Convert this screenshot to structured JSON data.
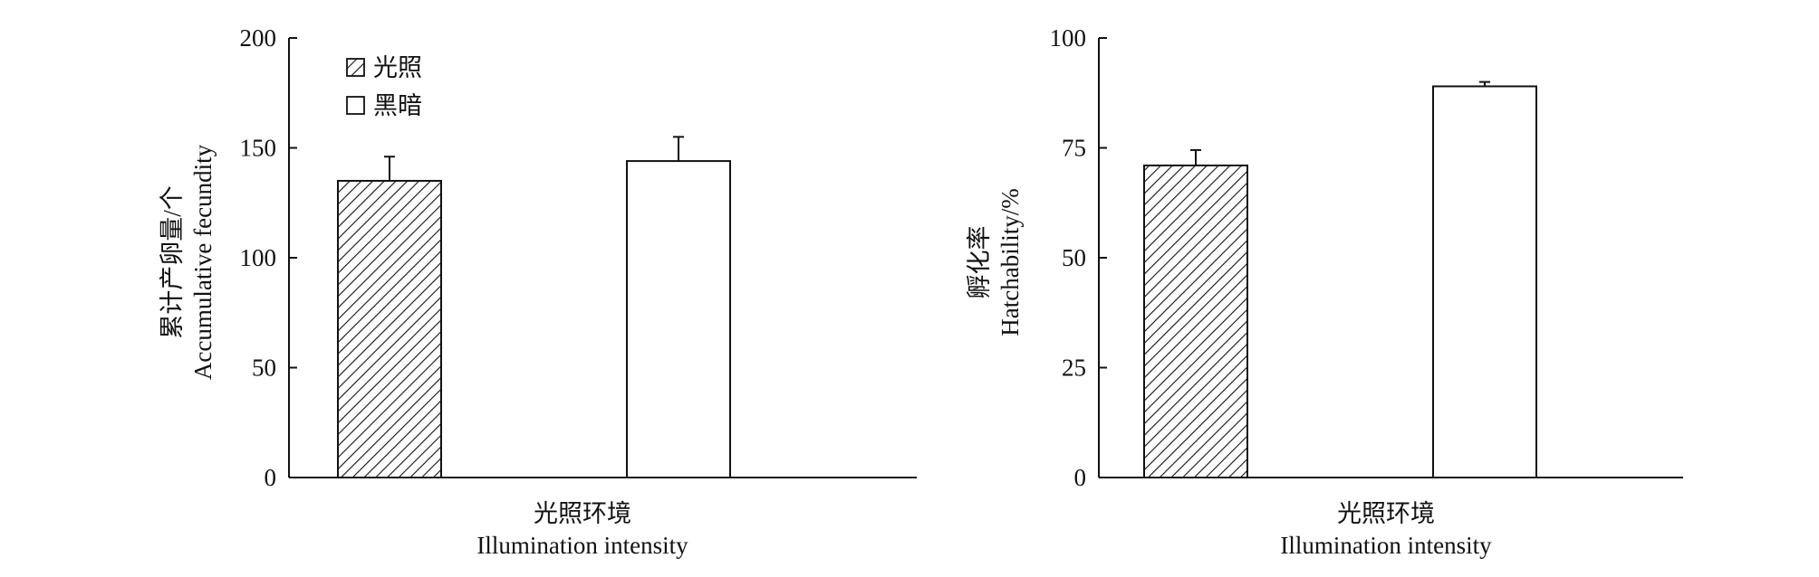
{
  "chart_data": [
    {
      "type": "bar",
      "categories": [
        "光照",
        "黑暗"
      ],
      "series": [
        {
          "values": [
            135,
            144
          ],
          "errors": [
            11,
            11
          ]
        }
      ],
      "ylim": [
        0,
        200
      ],
      "yticks": [
        0,
        50,
        100,
        150,
        200
      ],
      "ylabel_cn": "累计产卵量/个",
      "ylabel_en": "Accumulative fecundity",
      "xlabel_cn": "光照环境",
      "xlabel_en": "Illumination intensity",
      "legend": {
        "placement": "top-left",
        "entries": [
          {
            "label": "光照",
            "pattern": "hatched"
          },
          {
            "label": "黑暗",
            "pattern": "open"
          }
        ]
      },
      "bar_styles": [
        "hatched",
        "open"
      ]
    },
    {
      "type": "bar",
      "categories": [
        "光照",
        "黑暗"
      ],
      "series": [
        {
          "values": [
            71,
            89
          ],
          "errors": [
            3.5,
            1
          ]
        }
      ],
      "ylim": [
        0,
        100
      ],
      "yticks": [
        0,
        25,
        50,
        75,
        100
      ],
      "ylabel_cn": "孵化率",
      "ylabel_en": "Hatchability/%",
      "xlabel_cn": "光照环境",
      "xlabel_en": "Illumination intensity",
      "bar_styles": [
        "hatched",
        "open"
      ]
    }
  ],
  "colors": {
    "axis": "#111111",
    "bar_fill": "#ffffff",
    "hatch": "#111111"
  }
}
